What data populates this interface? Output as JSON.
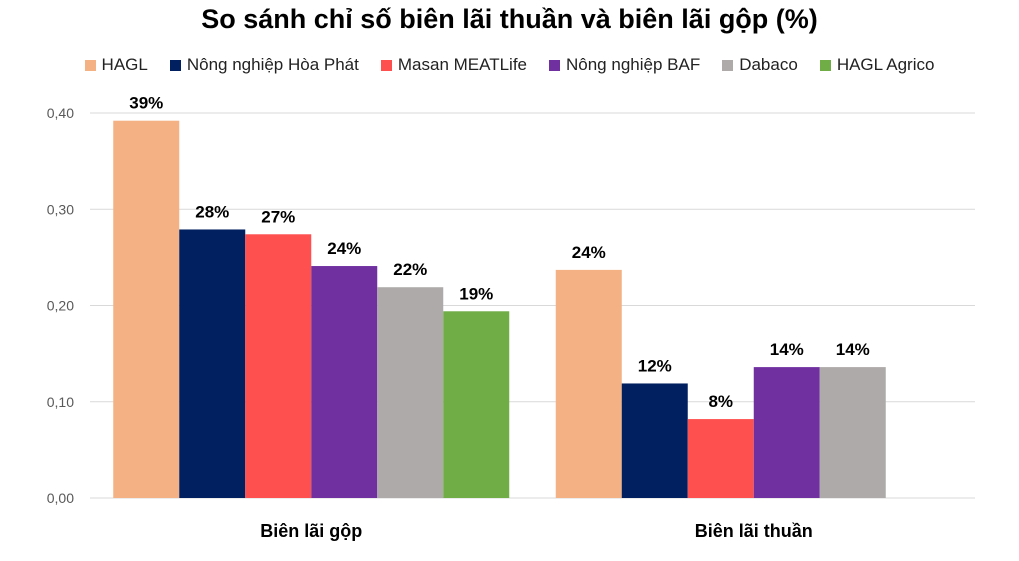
{
  "chart_data": {
    "type": "bar",
    "title": "So sánh chỉ số biên lãi thuần và biên lãi gộp (%)",
    "categories": [
      "Biên lãi gộp",
      "Biên lãi thuần"
    ],
    "xlabel": "",
    "ylabel": "",
    "ylim": [
      0,
      0.4
    ],
    "yticks": [
      "0,00",
      "0,10",
      "0,20",
      "0,30",
      "0,40"
    ],
    "grid": true,
    "legend": "top",
    "series": [
      {
        "name": "HAGL",
        "color": "#F4B183",
        "values": [
          0.392,
          0.237
        ],
        "labels": [
          "39%",
          "24%"
        ]
      },
      {
        "name": "Nông nghiệp Hòa Phát",
        "color": "#002060",
        "values": [
          0.279,
          0.119
        ],
        "labels": [
          "28%",
          "12%"
        ]
      },
      {
        "name": "Masan MEATLife",
        "color": "#FF5050",
        "values": [
          0.274,
          0.082
        ],
        "labels": [
          "27%",
          "8%"
        ]
      },
      {
        "name": "Nông nghiệp BAF",
        "color": "#7030A0",
        "values": [
          0.241,
          0.136
        ],
        "labels": [
          "24%",
          "14%"
        ]
      },
      {
        "name": "Dabaco",
        "color": "#AEAAAA",
        "values": [
          0.219,
          0.136
        ],
        "labels": [
          "22%",
          "14%"
        ]
      },
      {
        "name": "HAGL Agrico",
        "color": "#70AD47",
        "values": [
          0.194,
          null
        ],
        "labels": [
          "19%",
          null
        ]
      }
    ]
  }
}
